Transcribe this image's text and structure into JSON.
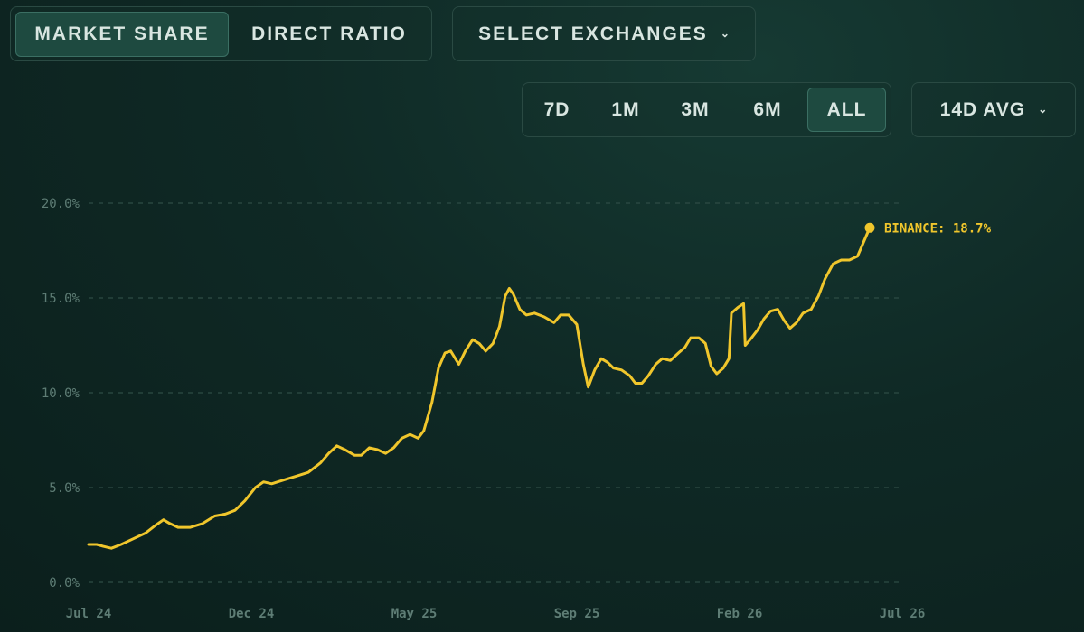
{
  "view_tabs": [
    {
      "label": "MARKET SHARE",
      "active": true
    },
    {
      "label": "DIRECT RATIO",
      "active": false
    }
  ],
  "exchange_select": {
    "label": "SELECT EXCHANGES",
    "icon": "chevron-down-icon"
  },
  "range_buttons": [
    {
      "label": "7D",
      "active": false
    },
    {
      "label": "1M",
      "active": false
    },
    {
      "label": "3M",
      "active": false
    },
    {
      "label": "6M",
      "active": false
    },
    {
      "label": "ALL",
      "active": true
    }
  ],
  "avg_select": {
    "label": "14D AVG",
    "icon": "chevron-down-icon"
  },
  "colors": {
    "line": "#f0c62c",
    "grid": "#2e4c45",
    "tick": "#5e7d75",
    "accent_bg": "#1e4a40"
  },
  "chart_data": {
    "type": "line",
    "title": "",
    "xlabel": "",
    "ylabel": "",
    "y_ticks": [
      "0.0%",
      "5.0%",
      "10.0%",
      "15.0%",
      "20.0%"
    ],
    "x_ticks": [
      "Jul 24",
      "Dec 24",
      "May 25",
      "Sep 25",
      "Feb 26",
      "Jul 26"
    ],
    "ylim": [
      0,
      20
    ],
    "grid": "horizontal-dashed",
    "end_label": "BINANCE: 18.7%",
    "series": [
      {
        "name": "BINANCE",
        "values": [
          [
            0.0,
            2.0
          ],
          [
            0.1,
            2.0
          ],
          [
            0.18,
            1.9
          ],
          [
            0.28,
            1.8
          ],
          [
            0.4,
            2.0
          ],
          [
            0.55,
            2.3
          ],
          [
            0.7,
            2.6
          ],
          [
            0.82,
            3.0
          ],
          [
            0.92,
            3.3
          ],
          [
            1.0,
            3.1
          ],
          [
            1.1,
            2.9
          ],
          [
            1.25,
            2.9
          ],
          [
            1.4,
            3.1
          ],
          [
            1.55,
            3.5
          ],
          [
            1.68,
            3.6
          ],
          [
            1.8,
            3.8
          ],
          [
            1.92,
            4.3
          ],
          [
            2.05,
            5.0
          ],
          [
            2.15,
            5.3
          ],
          [
            2.25,
            5.2
          ],
          [
            2.4,
            5.4
          ],
          [
            2.55,
            5.6
          ],
          [
            2.7,
            5.8
          ],
          [
            2.85,
            6.3
          ],
          [
            2.95,
            6.8
          ],
          [
            3.05,
            7.2
          ],
          [
            3.15,
            7.0
          ],
          [
            3.27,
            6.7
          ],
          [
            3.35,
            6.7
          ],
          [
            3.45,
            7.1
          ],
          [
            3.55,
            7.0
          ],
          [
            3.65,
            6.8
          ],
          [
            3.75,
            7.1
          ],
          [
            3.85,
            7.6
          ],
          [
            3.95,
            7.8
          ],
          [
            4.05,
            7.6
          ],
          [
            4.12,
            8.0
          ],
          [
            4.22,
            9.5
          ],
          [
            4.3,
            11.3
          ],
          [
            4.38,
            12.1
          ],
          [
            4.45,
            12.2
          ],
          [
            4.55,
            11.5
          ],
          [
            4.63,
            12.2
          ],
          [
            4.72,
            12.8
          ],
          [
            4.8,
            12.6
          ],
          [
            4.88,
            12.2
          ],
          [
            4.97,
            12.6
          ],
          [
            5.05,
            13.5
          ],
          [
            5.12,
            15.1
          ],
          [
            5.17,
            15.5
          ],
          [
            5.22,
            15.2
          ],
          [
            5.3,
            14.4
          ],
          [
            5.38,
            14.1
          ],
          [
            5.48,
            14.2
          ],
          [
            5.6,
            14.0
          ],
          [
            5.72,
            13.7
          ],
          [
            5.8,
            14.1
          ],
          [
            5.9,
            14.1
          ],
          [
            6.0,
            13.6
          ],
          [
            6.08,
            11.5
          ],
          [
            6.14,
            10.3
          ],
          [
            6.22,
            11.2
          ],
          [
            6.3,
            11.8
          ],
          [
            6.38,
            11.6
          ],
          [
            6.45,
            11.3
          ],
          [
            6.55,
            11.2
          ],
          [
            6.65,
            10.9
          ],
          [
            6.72,
            10.5
          ],
          [
            6.8,
            10.5
          ],
          [
            6.88,
            10.9
          ],
          [
            6.97,
            11.5
          ],
          [
            7.05,
            11.8
          ],
          [
            7.15,
            11.7
          ],
          [
            7.25,
            12.1
          ],
          [
            7.33,
            12.4
          ],
          [
            7.4,
            12.9
          ],
          [
            7.5,
            12.9
          ],
          [
            7.58,
            12.6
          ],
          [
            7.65,
            11.4
          ],
          [
            7.72,
            11.0
          ],
          [
            7.8,
            11.3
          ],
          [
            7.87,
            11.8
          ],
          [
            7.9,
            14.2
          ],
          [
            7.98,
            14.5
          ],
          [
            8.05,
            14.7
          ],
          [
            8.07,
            12.5
          ],
          [
            8.13,
            12.8
          ],
          [
            8.22,
            13.3
          ],
          [
            8.3,
            13.9
          ],
          [
            8.38,
            14.3
          ],
          [
            8.47,
            14.4
          ],
          [
            8.55,
            13.8
          ],
          [
            8.62,
            13.4
          ],
          [
            8.7,
            13.7
          ],
          [
            8.78,
            14.2
          ],
          [
            8.88,
            14.4
          ],
          [
            8.97,
            15.1
          ],
          [
            9.05,
            16.0
          ],
          [
            9.15,
            16.8
          ],
          [
            9.25,
            17.0
          ],
          [
            9.35,
            17.0
          ],
          [
            9.45,
            17.2
          ],
          [
            9.52,
            17.9
          ],
          [
            9.58,
            18.5
          ],
          [
            9.6,
            18.7
          ]
        ]
      }
    ]
  }
}
